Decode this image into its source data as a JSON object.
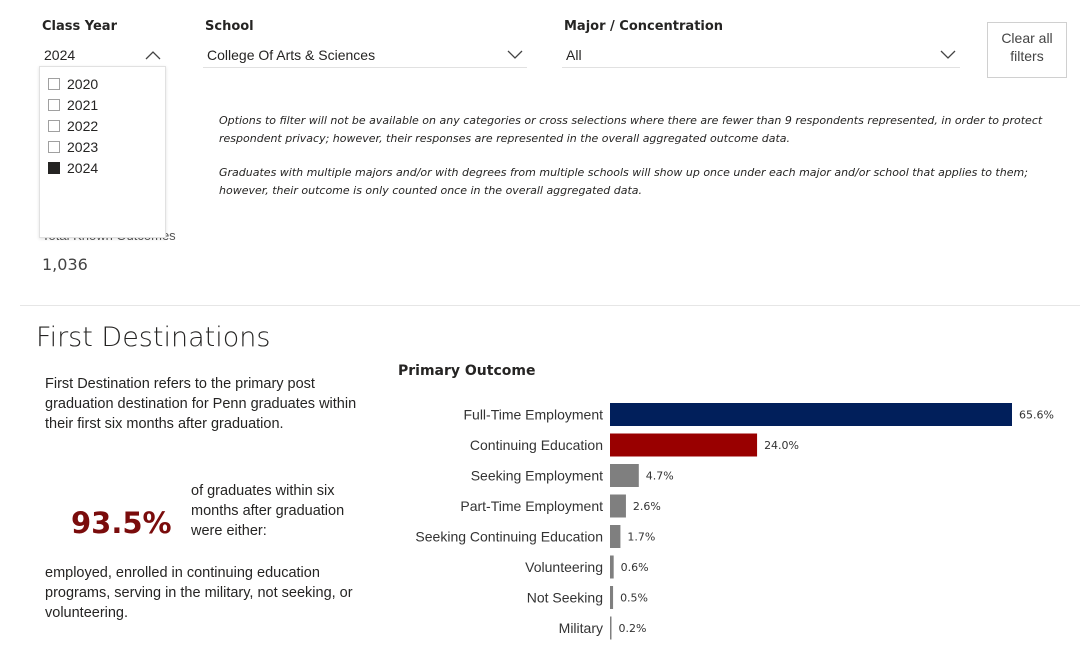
{
  "filters": {
    "class_year": {
      "label": "Class Year",
      "value": "2024",
      "options": [
        {
          "label": "2020",
          "checked": false
        },
        {
          "label": "2021",
          "checked": false
        },
        {
          "label": "2022",
          "checked": false
        },
        {
          "label": "2023",
          "checked": false
        },
        {
          "label": "2024",
          "checked": true
        }
      ]
    },
    "school": {
      "label": "School",
      "value": "College Of Arts & Sciences"
    },
    "major": {
      "label": "Major / Concentration",
      "value": "All"
    },
    "clear": {
      "line1": "Clear all",
      "line2": "filters"
    }
  },
  "notes": {
    "privacy": "Options to filter will not be available on any categories or cross selections where there are fewer than 9 respondents represented, in order to protect respondent privacy; however, their responses are represented in the overall aggregated outcome data.",
    "multiple": "Graduates with multiple majors and/or with degrees from multiple schools will show up once under each major and/or school that applies to them; however, their outcome is only counted once in the overall aggregated data."
  },
  "known": {
    "label": "Total Known Outcomes",
    "value": "1,036"
  },
  "first_destinations": {
    "title": "First Destinations",
    "description": "First Destination refers to the primary post graduation destination for Penn graduates within their first six months after graduation.",
    "stat_value": "93.5%",
    "stat_text": "of graduates within six months after graduation were either:",
    "stat_detail": "employed, enrolled in continuing education programs, serving in the military, not seeking, or volunteering.",
    "stat_color": "#7a0c0c"
  },
  "chart_data": {
    "type": "bar",
    "orientation": "horizontal",
    "title": "Primary Outcome",
    "categories": [
      "Full-Time Employment",
      "Continuing Education",
      "Seeking Employment",
      "Part-Time Employment",
      "Seeking Continuing Education",
      "Volunteering",
      "Not Seeking",
      "Military"
    ],
    "values": [
      65.6,
      24.0,
      4.7,
      2.6,
      1.7,
      0.6,
      0.5,
      0.2
    ],
    "value_labels": [
      "65.6%",
      "24.0%",
      "4.7%",
      "2.6%",
      "1.7%",
      "0.6%",
      "0.5%",
      "0.2%"
    ],
    "colors": [
      "#011f5b",
      "#990000",
      "#7f7f7f",
      "#7f7f7f",
      "#7f7f7f",
      "#7f7f7f",
      "#7f7f7f",
      "#7f7f7f"
    ],
    "xlim": [
      0,
      65.6
    ],
    "xlabel": "",
    "ylabel": "",
    "grid": false
  }
}
